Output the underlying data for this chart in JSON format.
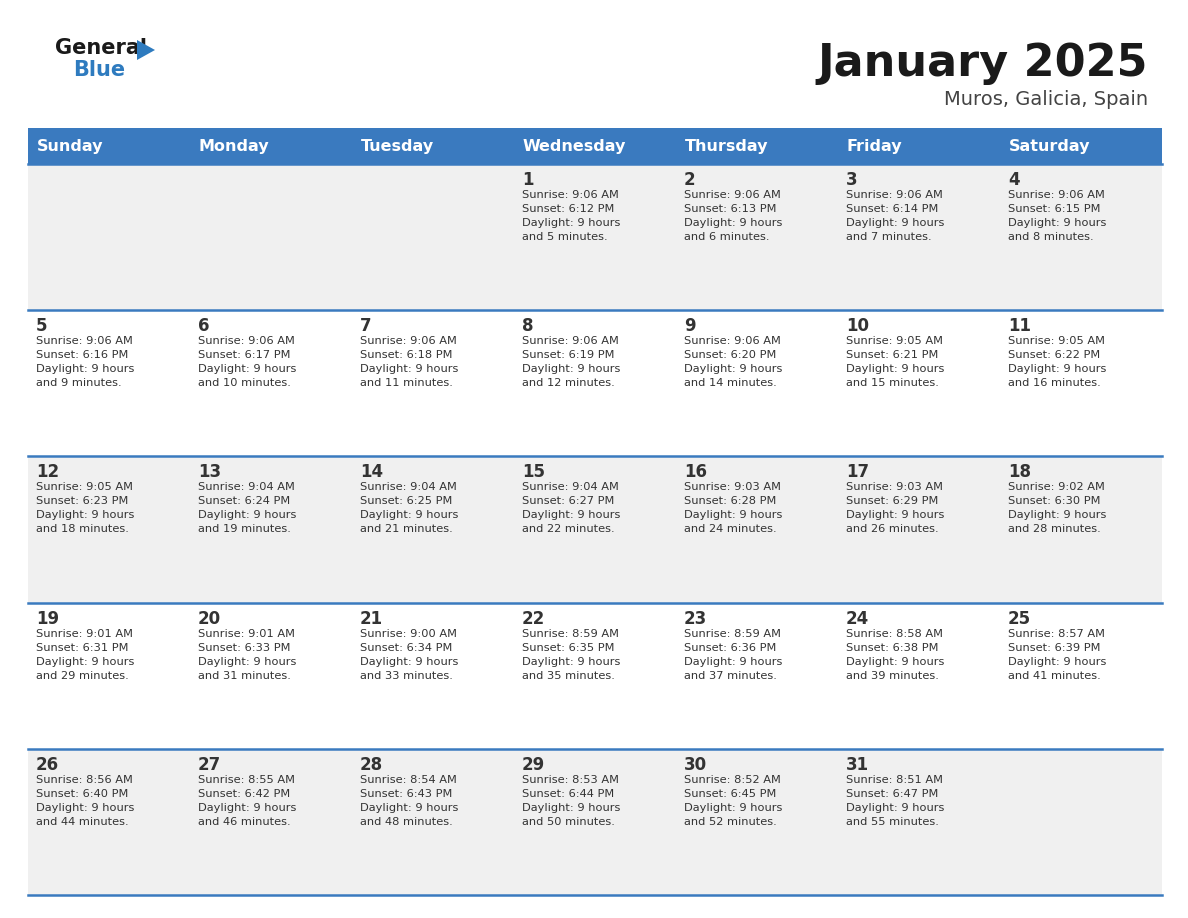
{
  "title": "January 2025",
  "subtitle": "Muros, Galicia, Spain",
  "days_of_week": [
    "Sunday",
    "Monday",
    "Tuesday",
    "Wednesday",
    "Thursday",
    "Friday",
    "Saturday"
  ],
  "header_bg": "#3a7abf",
  "header_text": "#ffffff",
  "row_bg_even": "#ffffff",
  "row_bg_odd": "#f0f0f0",
  "cell_text_color": "#333333",
  "day_num_color": "#333333",
  "border_color": "#3a7abf",
  "title_color": "#1a1a1a",
  "subtitle_color": "#444444",
  "generalblue_text": "#1a1a1a",
  "generalblue_blue": "#2e7bbf",
  "weeks": [
    [
      {
        "day": null,
        "info": null
      },
      {
        "day": null,
        "info": null
      },
      {
        "day": null,
        "info": null
      },
      {
        "day": 1,
        "info": "Sunrise: 9:06 AM\nSunset: 6:12 PM\nDaylight: 9 hours\nand 5 minutes."
      },
      {
        "day": 2,
        "info": "Sunrise: 9:06 AM\nSunset: 6:13 PM\nDaylight: 9 hours\nand 6 minutes."
      },
      {
        "day": 3,
        "info": "Sunrise: 9:06 AM\nSunset: 6:14 PM\nDaylight: 9 hours\nand 7 minutes."
      },
      {
        "day": 4,
        "info": "Sunrise: 9:06 AM\nSunset: 6:15 PM\nDaylight: 9 hours\nand 8 minutes."
      }
    ],
    [
      {
        "day": 5,
        "info": "Sunrise: 9:06 AM\nSunset: 6:16 PM\nDaylight: 9 hours\nand 9 minutes."
      },
      {
        "day": 6,
        "info": "Sunrise: 9:06 AM\nSunset: 6:17 PM\nDaylight: 9 hours\nand 10 minutes."
      },
      {
        "day": 7,
        "info": "Sunrise: 9:06 AM\nSunset: 6:18 PM\nDaylight: 9 hours\nand 11 minutes."
      },
      {
        "day": 8,
        "info": "Sunrise: 9:06 AM\nSunset: 6:19 PM\nDaylight: 9 hours\nand 12 minutes."
      },
      {
        "day": 9,
        "info": "Sunrise: 9:06 AM\nSunset: 6:20 PM\nDaylight: 9 hours\nand 14 minutes."
      },
      {
        "day": 10,
        "info": "Sunrise: 9:05 AM\nSunset: 6:21 PM\nDaylight: 9 hours\nand 15 minutes."
      },
      {
        "day": 11,
        "info": "Sunrise: 9:05 AM\nSunset: 6:22 PM\nDaylight: 9 hours\nand 16 minutes."
      }
    ],
    [
      {
        "day": 12,
        "info": "Sunrise: 9:05 AM\nSunset: 6:23 PM\nDaylight: 9 hours\nand 18 minutes."
      },
      {
        "day": 13,
        "info": "Sunrise: 9:04 AM\nSunset: 6:24 PM\nDaylight: 9 hours\nand 19 minutes."
      },
      {
        "day": 14,
        "info": "Sunrise: 9:04 AM\nSunset: 6:25 PM\nDaylight: 9 hours\nand 21 minutes."
      },
      {
        "day": 15,
        "info": "Sunrise: 9:04 AM\nSunset: 6:27 PM\nDaylight: 9 hours\nand 22 minutes."
      },
      {
        "day": 16,
        "info": "Sunrise: 9:03 AM\nSunset: 6:28 PM\nDaylight: 9 hours\nand 24 minutes."
      },
      {
        "day": 17,
        "info": "Sunrise: 9:03 AM\nSunset: 6:29 PM\nDaylight: 9 hours\nand 26 minutes."
      },
      {
        "day": 18,
        "info": "Sunrise: 9:02 AM\nSunset: 6:30 PM\nDaylight: 9 hours\nand 28 minutes."
      }
    ],
    [
      {
        "day": 19,
        "info": "Sunrise: 9:01 AM\nSunset: 6:31 PM\nDaylight: 9 hours\nand 29 minutes."
      },
      {
        "day": 20,
        "info": "Sunrise: 9:01 AM\nSunset: 6:33 PM\nDaylight: 9 hours\nand 31 minutes."
      },
      {
        "day": 21,
        "info": "Sunrise: 9:00 AM\nSunset: 6:34 PM\nDaylight: 9 hours\nand 33 minutes."
      },
      {
        "day": 22,
        "info": "Sunrise: 8:59 AM\nSunset: 6:35 PM\nDaylight: 9 hours\nand 35 minutes."
      },
      {
        "day": 23,
        "info": "Sunrise: 8:59 AM\nSunset: 6:36 PM\nDaylight: 9 hours\nand 37 minutes."
      },
      {
        "day": 24,
        "info": "Sunrise: 8:58 AM\nSunset: 6:38 PM\nDaylight: 9 hours\nand 39 minutes."
      },
      {
        "day": 25,
        "info": "Sunrise: 8:57 AM\nSunset: 6:39 PM\nDaylight: 9 hours\nand 41 minutes."
      }
    ],
    [
      {
        "day": 26,
        "info": "Sunrise: 8:56 AM\nSunset: 6:40 PM\nDaylight: 9 hours\nand 44 minutes."
      },
      {
        "day": 27,
        "info": "Sunrise: 8:55 AM\nSunset: 6:42 PM\nDaylight: 9 hours\nand 46 minutes."
      },
      {
        "day": 28,
        "info": "Sunrise: 8:54 AM\nSunset: 6:43 PM\nDaylight: 9 hours\nand 48 minutes."
      },
      {
        "day": 29,
        "info": "Sunrise: 8:53 AM\nSunset: 6:44 PM\nDaylight: 9 hours\nand 50 minutes."
      },
      {
        "day": 30,
        "info": "Sunrise: 8:52 AM\nSunset: 6:45 PM\nDaylight: 9 hours\nand 52 minutes."
      },
      {
        "day": 31,
        "info": "Sunrise: 8:51 AM\nSunset: 6:47 PM\nDaylight: 9 hours\nand 55 minutes."
      },
      {
        "day": null,
        "info": null
      }
    ]
  ]
}
